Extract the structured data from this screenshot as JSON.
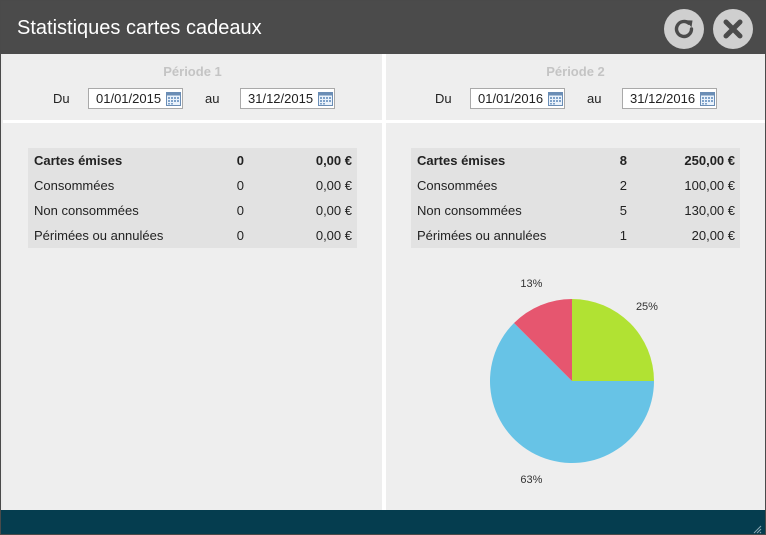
{
  "window": {
    "title": "Statistiques cartes cadeaux"
  },
  "colors": {
    "titlebar": "#4b4b4b",
    "bottombar": "#053d4f",
    "pie_green": "#b1e233",
    "pie_blue": "#67c3e6",
    "pie_red": "#e6566f"
  },
  "period1": {
    "title": "Période 1",
    "from_label": "Du",
    "from_date": "01/01/2015",
    "to_label": "au",
    "to_date": "31/12/2015",
    "stats": [
      {
        "label": "Cartes émises",
        "count": "0",
        "amount": "0,00 €"
      },
      {
        "label": "Consommées",
        "count": "0",
        "amount": "0,00 €"
      },
      {
        "label": "Non consommées",
        "count": "0",
        "amount": "0,00 €"
      },
      {
        "label": "Périmées ou annulées",
        "count": "0",
        "amount": "0,00 €"
      }
    ]
  },
  "period2": {
    "title": "Période 2",
    "from_label": "Du",
    "from_date": "01/01/2016",
    "to_label": "au",
    "to_date": "31/12/2016",
    "stats": [
      {
        "label": "Cartes émises",
        "count": "8",
        "amount": "250,00 €"
      },
      {
        "label": "Consommées",
        "count": "2",
        "amount": "100,00 €"
      },
      {
        "label": "Non consommées",
        "count": "5",
        "amount": "130,00 €"
      },
      {
        "label": "Périmées ou annulées",
        "count": "1",
        "amount": "20,00 €"
      }
    ],
    "pie": {
      "slices": [
        {
          "value": 25,
          "label": "25%",
          "color": "#b1e233"
        },
        {
          "value": 62.5,
          "label": "63%",
          "color": "#67c3e6"
        },
        {
          "value": 12.5,
          "label": "13%",
          "color": "#e6566f"
        }
      ]
    }
  }
}
